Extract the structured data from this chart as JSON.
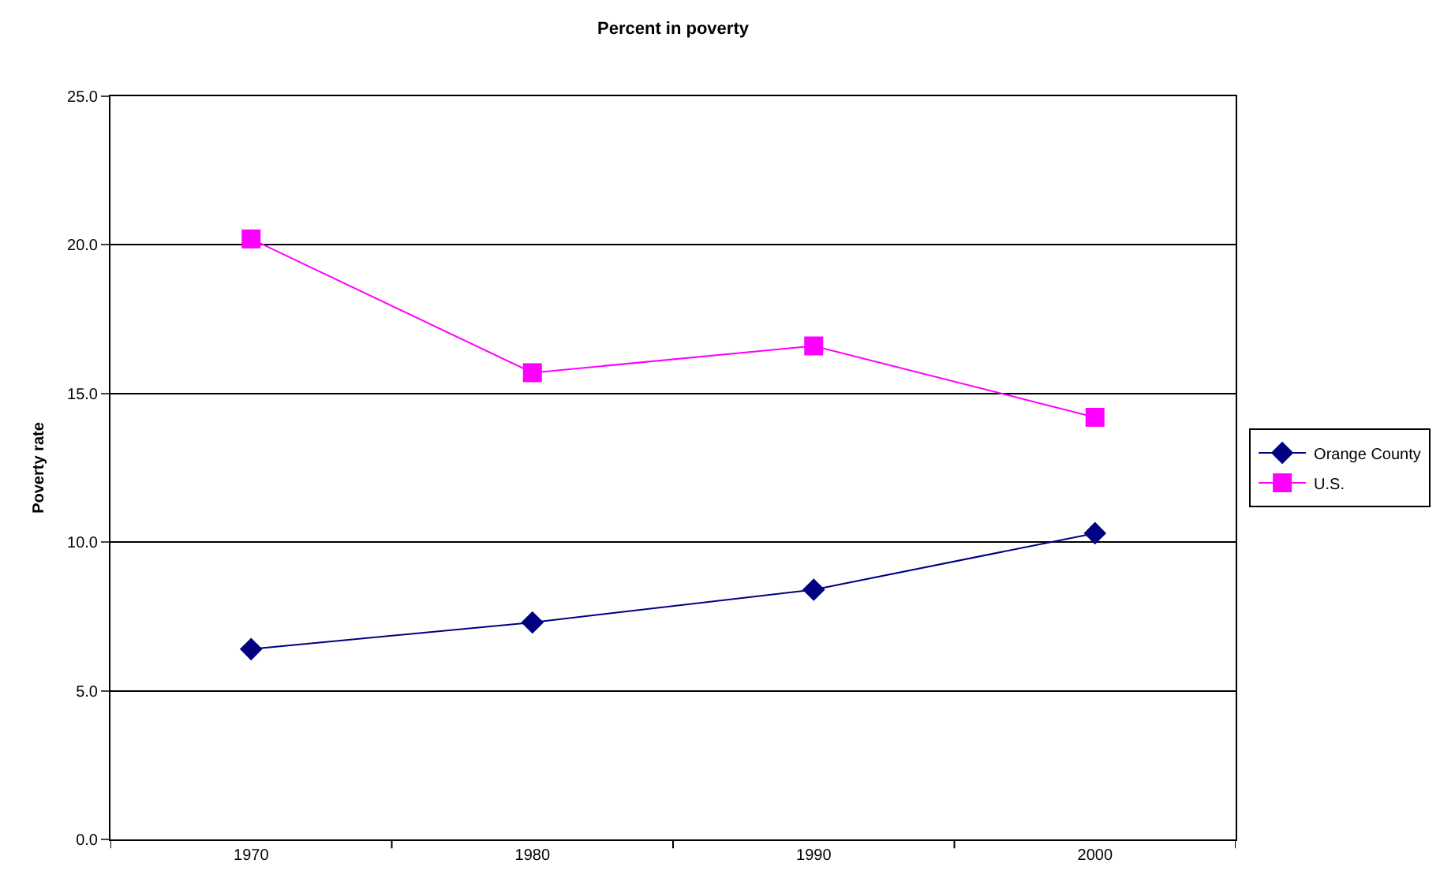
{
  "chart_data": {
    "type": "line",
    "title": "Percent in poverty",
    "ylabel": "Poverty rate",
    "categories": [
      "1970",
      "1980",
      "1990",
      "2000"
    ],
    "series": [
      {
        "name": "Orange County",
        "color": "#000080",
        "marker": "diamond",
        "values": [
          6.4,
          7.3,
          8.4,
          10.3
        ]
      },
      {
        "name": "U.S.",
        "color": "#ff00ff",
        "marker": "square",
        "values": [
          20.2,
          15.7,
          16.6,
          14.2
        ]
      }
    ],
    "ylim": [
      0,
      25
    ],
    "yticks": [
      {
        "value": 0,
        "label": "0.0"
      },
      {
        "value": 5,
        "label": "5.0"
      },
      {
        "value": 10,
        "label": "10.0"
      },
      {
        "value": 15,
        "label": "15.0"
      },
      {
        "value": 20,
        "label": "20.0"
      },
      {
        "value": 25,
        "label": "25.0"
      }
    ],
    "grid": "y",
    "legend": "right",
    "line_style": "solid"
  }
}
